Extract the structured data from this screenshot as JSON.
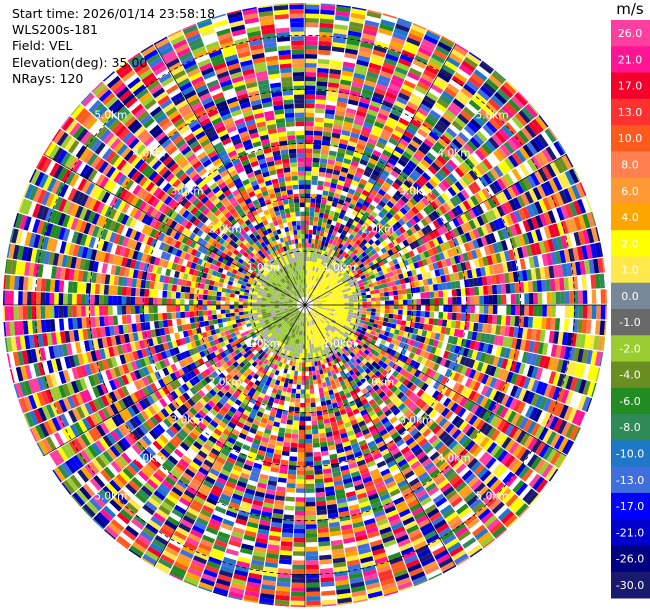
{
  "header": {
    "start_time": "Start time: 2026/01/14 23:58:18",
    "instrument": "WLS200s-181",
    "field": "Field: VEL",
    "elevation": "Elevation(deg): 35.00",
    "nrays": "NRays: 120"
  },
  "chart_data": {
    "type": "heatmap",
    "projection": "polar",
    "field": "VEL",
    "n_rays": 120,
    "range_rings_km": [
      1.0,
      2.0,
      3.0,
      4.0,
      5.0
    ],
    "ring_labels": [
      "1.0km",
      "2.0km",
      "3.0km",
      "4.0km",
      "5.0km"
    ],
    "max_range_km": 5.6,
    "colorbar": {
      "unit": "m/s",
      "ticks": [
        "26.0",
        "21.0",
        "17.0",
        "13.0",
        "10.0",
        "8.0",
        "6.0",
        "4.0",
        "2.0",
        "1.0",
        "0.0",
        "-1.0",
        "-2.0",
        "-4.0",
        "-6.0",
        "-8.0",
        "-10.0",
        "-13.0",
        "-17.0",
        "-21.0",
        "-26.0",
        "-30.0"
      ],
      "colors": [
        "#ff3f9f",
        "#ff1493",
        "#f5002a",
        "#ff3030",
        "#ff5a1e",
        "#ff7f50",
        "#ff9933",
        "#ffa500",
        "#ffff00",
        "#ffe84a",
        "#778899",
        "#696969",
        "#9acd32",
        "#6b8e23",
        "#228b22",
        "#2e8b57",
        "#1e78c8",
        "#3f6fdd",
        "#0000ff",
        "#0000cd",
        "#000080",
        "#191970"
      ]
    }
  }
}
